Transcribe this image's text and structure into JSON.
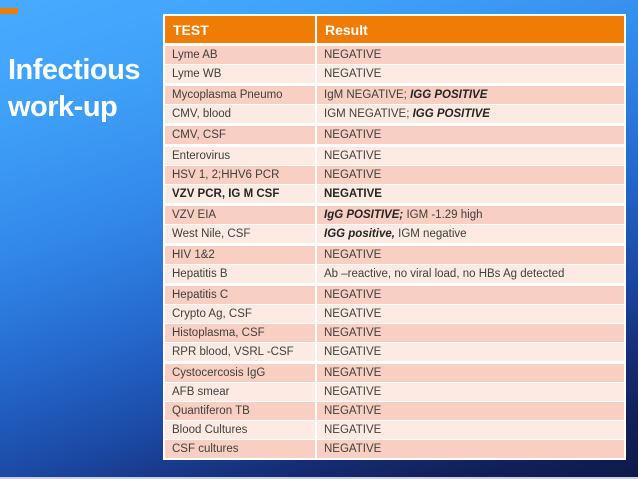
{
  "slide": {
    "title_line1": "Infectious",
    "title_line2": "work-up"
  },
  "table": {
    "headers": [
      "TEST",
      "Result"
    ],
    "rows": [
      {
        "test": "Lyme AB",
        "group_start": false,
        "bold_row": false,
        "result": [
          {
            "text": "NEGATIVE",
            "emph": false
          }
        ]
      },
      {
        "test": "Lyme WB",
        "group_start": false,
        "bold_row": false,
        "result": [
          {
            "text": "NEGATIVE",
            "emph": false
          }
        ]
      },
      {
        "test": "Mycoplasma Pneumo",
        "group_start": true,
        "bold_row": false,
        "result": [
          {
            "text": "IgM NEGATIVE; ",
            "emph": false
          },
          {
            "text": "IGG POSITIVE",
            "emph": true
          }
        ]
      },
      {
        "test": "CMV, blood",
        "group_start": false,
        "bold_row": false,
        "result": [
          {
            "text": "IGM NEGATIVE; ",
            "emph": false
          },
          {
            "text": "IGG POSITIVE",
            "emph": true
          }
        ]
      },
      {
        "test": "CMV, CSF",
        "group_start": true,
        "bold_row": false,
        "result": [
          {
            "text": "NEGATIVE",
            "emph": false
          }
        ]
      },
      {
        "test": "Enterovirus",
        "group_start": true,
        "bold_row": false,
        "result": [
          {
            "text": "NEGATIVE",
            "emph": false
          }
        ]
      },
      {
        "test": "HSV 1, 2;HHV6 PCR",
        "group_start": false,
        "bold_row": false,
        "result": [
          {
            "text": "NEGATIVE",
            "emph": false
          }
        ]
      },
      {
        "test": "VZV PCR, IG M CSF",
        "group_start": false,
        "bold_row": true,
        "result": [
          {
            "text": "NEGATIVE",
            "emph": false
          }
        ]
      },
      {
        "test": "VZV EIA",
        "group_start": true,
        "bold_row": false,
        "result": [
          {
            "text": "IgG POSITIVE; ",
            "emph": true
          },
          {
            "text": "IGM -1.29 high",
            "emph": false
          }
        ]
      },
      {
        "test": "West Nile, CSF",
        "group_start": false,
        "bold_row": false,
        "result": [
          {
            "text": "IGG positive, ",
            "emph": true
          },
          {
            "text": "IGM negative",
            "emph": false
          }
        ]
      },
      {
        "test": "HIV 1&2",
        "group_start": true,
        "bold_row": false,
        "result": [
          {
            "text": "NEGATIVE",
            "emph": false
          }
        ]
      },
      {
        "test": "Hepatitis B",
        "group_start": false,
        "bold_row": false,
        "result": [
          {
            "text": "Ab –reactive, no viral load, no HBs Ag detected",
            "emph": false
          }
        ]
      },
      {
        "test": "Hepatitis C",
        "group_start": true,
        "bold_row": false,
        "result": [
          {
            "text": "NEGATIVE",
            "emph": false
          }
        ]
      },
      {
        "test": "Crypto Ag, CSF",
        "group_start": false,
        "bold_row": false,
        "result": [
          {
            "text": "NEGATIVE",
            "emph": false
          }
        ]
      },
      {
        "test": "Histoplasma, CSF",
        "group_start": false,
        "bold_row": false,
        "result": [
          {
            "text": "NEGATIVE",
            "emph": false
          }
        ]
      },
      {
        "test": "RPR blood, VSRL -CSF",
        "group_start": false,
        "bold_row": false,
        "result": [
          {
            "text": "NEGATIVE",
            "emph": false
          }
        ]
      },
      {
        "test": "Cystocercosis IgG",
        "group_start": true,
        "bold_row": false,
        "result": [
          {
            "text": "NEGATIVE",
            "emph": false
          }
        ]
      },
      {
        "test": "AFB smear",
        "group_start": false,
        "bold_row": false,
        "result": [
          {
            "text": "NEGATIVE",
            "emph": false
          }
        ]
      },
      {
        "test": "Quantiferon TB",
        "group_start": false,
        "bold_row": false,
        "result": [
          {
            "text": "NEGATIVE",
            "emph": false
          }
        ]
      },
      {
        "test": "Blood Cultures",
        "group_start": false,
        "bold_row": false,
        "result": [
          {
            "text": "NEGATIVE",
            "emph": false
          }
        ]
      },
      {
        "test": "CSF cultures",
        "group_start": false,
        "bold_row": false,
        "result": [
          {
            "text": "NEGATIVE",
            "emph": false
          }
        ]
      }
    ]
  },
  "colors": {
    "header_bg": "#EF7D05",
    "row_dark": "#F9CFC3",
    "row_light": "#FCEAE3",
    "table_border": "#FFFFFF",
    "row_text": "#3F3F3C",
    "emph_text": "#262624",
    "title_text": "#FFFFFF",
    "accent": "#EF7D05",
    "bg_top": "#48ABFF",
    "bg_bottom": "#0F1A4A",
    "bottom_strip": "#C9CEE2"
  }
}
